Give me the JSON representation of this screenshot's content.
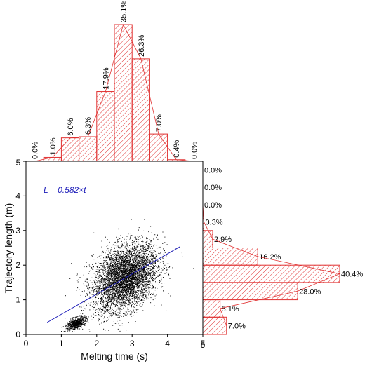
{
  "chart_data": {
    "type": "scatter",
    "xlabel": "Melting time (s)",
    "ylabel": "Trajectory length (m)",
    "xlim": [
      0,
      5
    ],
    "ylim": [
      0,
      5
    ],
    "x_ticks": [
      "0",
      "1",
      "2",
      "3",
      "4",
      "5"
    ],
    "y_ticks": [
      "0",
      "1",
      "2",
      "3",
      "4",
      "5"
    ],
    "top_hist_max_label": "5",
    "right_hist_max_label": "5",
    "fit_label": "L = 0.582×t",
    "fit_line": {
      "slope": 0.582,
      "x_start": 0.6,
      "x_end": 4.35
    },
    "top_histogram": {
      "bin_starts": [
        0,
        0.5,
        1.0,
        1.5,
        2.0,
        2.5,
        3.0,
        3.5,
        4.0,
        4.5
      ],
      "bin_width": 0.5,
      "labels": [
        "0.0%",
        "1.0%",
        "6.0%",
        "6.3%",
        "17.9%",
        "35.1%",
        "26.3%",
        "7.0%",
        "0.4%",
        "0.0%"
      ],
      "values": [
        0.0,
        1.0,
        6.0,
        6.3,
        17.9,
        35.1,
        26.3,
        7.0,
        0.4,
        0.0
      ]
    },
    "right_histogram": {
      "bin_starts": [
        0,
        0.5,
        1.0,
        1.5,
        2.0,
        2.5,
        3.0,
        3.5,
        4.0,
        4.5
      ],
      "bin_width": 0.5,
      "labels": [
        "7.0%",
        "5.1%",
        "28.0%",
        "40.4%",
        "16.2%",
        "2.9%",
        "0.3%",
        "0.0%",
        "0.0%",
        "0.0%"
      ],
      "values": [
        7.0,
        5.1,
        28.0,
        40.4,
        16.2,
        2.9,
        0.3,
        0.0,
        0.0,
        0.0
      ]
    },
    "scatter_clusters": [
      {
        "x_mean": 2.8,
        "y_mean": 1.65,
        "x_sd": 0.45,
        "y_sd": 0.45,
        "count": 5200
      },
      {
        "x_mean": 1.4,
        "y_mean": 0.32,
        "x_sd": 0.13,
        "y_sd": 0.08,
        "count": 700
      }
    ],
    "colors": {
      "points": "#000000",
      "fit": "#1a1ab8",
      "histogram": "#e03030"
    }
  }
}
